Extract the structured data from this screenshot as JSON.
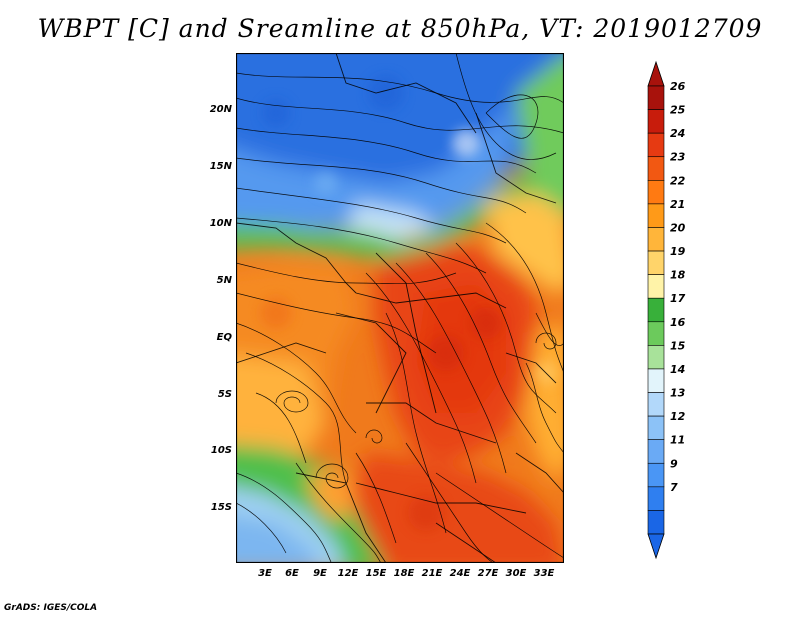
{
  "title": "WBPT [C] and Sreamline at 850hPa, VT: 2019012709",
  "credit": "GrADS: IGES/COLA",
  "lat_labels": [
    "20N",
    "15N",
    "10N",
    "5N",
    "EQ",
    "5S",
    "10S",
    "15S"
  ],
  "lon_labels": [
    "3E",
    "6E",
    "9E",
    "12E",
    "15E",
    "18E",
    "21E",
    "24E",
    "27E",
    "30E",
    "33E"
  ],
  "colorbar": {
    "labels": [
      "7",
      "9",
      "11",
      "12",
      "13",
      "14",
      "15",
      "16",
      "17",
      "18",
      "19",
      "20",
      "21",
      "22",
      "23",
      "24",
      "25",
      "26"
    ],
    "colors": [
      "#1a66e6",
      "#2f7ff0",
      "#4a96f5",
      "#6aaaf5",
      "#8cc2f7",
      "#b2d8fa",
      "#e2f4fb",
      "#a8e29a",
      "#6cca5c",
      "#38b03a",
      "#fff3a8",
      "#ffd46a",
      "#ffb53a",
      "#ff9a18",
      "#ff7a12",
      "#f25812",
      "#e63a12",
      "#c81c0c",
      "#a8120c"
    ]
  }
}
